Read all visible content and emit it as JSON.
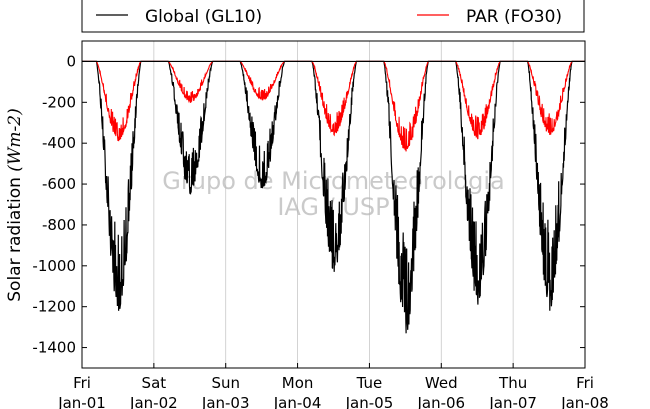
{
  "chart_data": {
    "type": "line",
    "title": "",
    "ylabel": "Solar radiation",
    "ylabel_unit": "(Wm-2)",
    "ylim": [
      -1500,
      100
    ],
    "yticks": [
      0,
      -200,
      -400,
      -600,
      -800,
      -1000,
      -1200,
      -1400
    ],
    "xlim": [
      "2016-01-01",
      "2016-01-08"
    ],
    "xticks": [
      {
        "day": "Fri",
        "date": "Jan-01"
      },
      {
        "day": "Sat",
        "date": "Jan-02"
      },
      {
        "day": "Sun",
        "date": "Jan-03"
      },
      {
        "day": "Mon",
        "date": "Jan-04"
      },
      {
        "day": "Tue",
        "date": "Jan-05"
      },
      {
        "day": "Wed",
        "date": "Jan-06"
      },
      {
        "day": "Thu",
        "date": "Jan-07"
      },
      {
        "day": "Fri",
        "date": "Jan-08"
      }
    ],
    "grid": "vertical",
    "legend_position": "top",
    "series": [
      {
        "name": "Global (GL10)",
        "color": "#000000",
        "daily_min": [
          -1220,
          -650,
          -620,
          -1030,
          -1330,
          -1190,
          -1220
        ],
        "note_shape": "daytime curve with strong cloud fluctuations"
      },
      {
        "name": "PAR (FO30)",
        "color": "#ff0000",
        "daily_min": [
          -390,
          -200,
          -190,
          -360,
          -440,
          -380,
          -360
        ]
      }
    ],
    "watermark": [
      "Grupo de Micrometeorologia",
      "IAG / USP"
    ]
  }
}
